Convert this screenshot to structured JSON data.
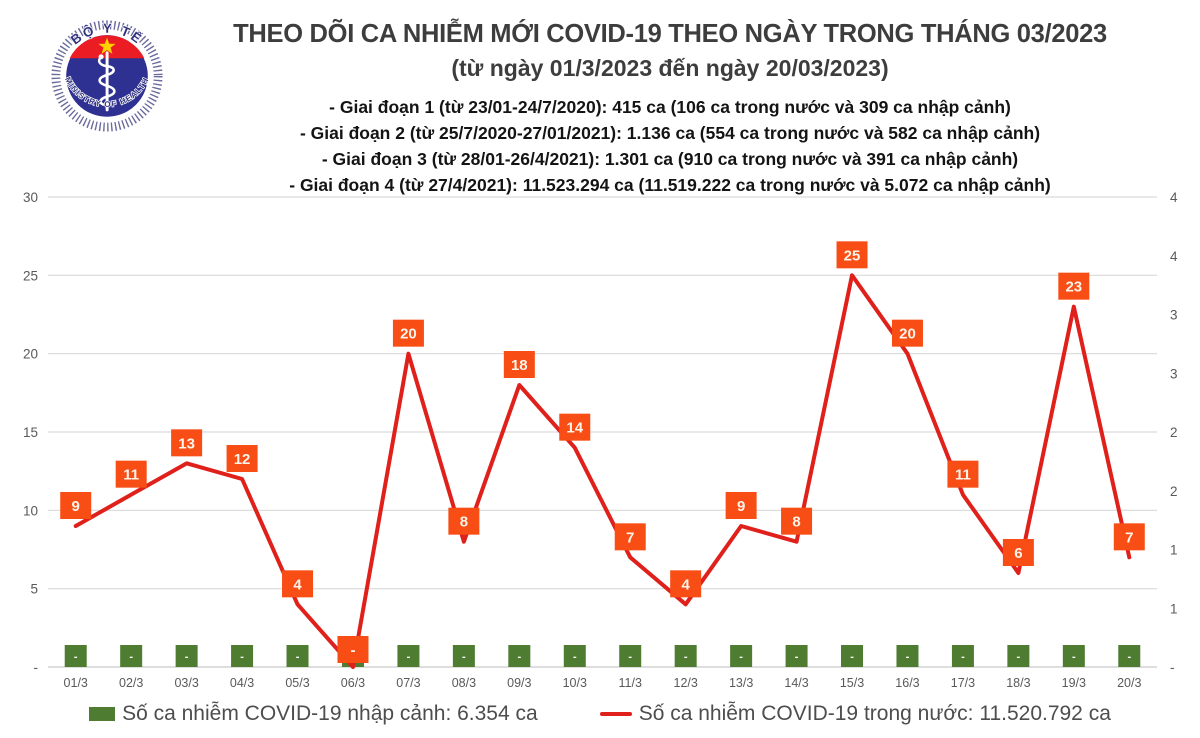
{
  "logo": {
    "top_text": "BỘ Y TẾ",
    "bottom_text": "MINISTRY OF HEALTH"
  },
  "header": {
    "title": "THEO DÕI CA NHIỄM MỚI COVID-19 THEO NGÀY TRONG THÁNG 03/2023",
    "subtitle": "(từ ngày 01/3/2023 đến ngày 20/03/2023)",
    "notes": [
      "- Giai đoạn 1 (từ 23/01-24/7/2020): 415 ca (106 ca trong nước và 309 ca nhập cảnh)",
      "- Giai đoạn 2 (từ 25/7/2020-27/01/2021): 1.136 ca (554 ca trong nước và 582 ca nhập cảnh)",
      "- Giai đoạn 3 (từ 28/01-26/4/2021): 1.301 ca (910 ca trong nước và 391 ca nhập cảnh)",
      "- Giai đoạn 4 (từ 27/4/2021): 11.523.294 ca (11.519.222 ca trong nước và 5.072 ca nhập cảnh)"
    ]
  },
  "chart_data": {
    "type": "line",
    "title": "THEO DÕI CA NHIỄM MỚI COVID-19 THEO NGÀY TRONG THÁNG 03/2023",
    "subtitle": "(từ ngày 01/3/2023 đến ngày 20/03/2023)",
    "categories": [
      "01/3",
      "02/3",
      "03/3",
      "04/3",
      "05/3",
      "06/3",
      "07/3",
      "08/3",
      "09/3",
      "10/3",
      "11/3",
      "12/3",
      "13/3",
      "14/3",
      "15/3",
      "16/3",
      "17/3",
      "18/3",
      "19/3",
      "20/3"
    ],
    "series": [
      {
        "name": "Số ca nhiễm COVID-19 trong nước",
        "chart": "line",
        "color": "#e0201a",
        "label_bg": "#f84d14",
        "values": [
          9,
          11,
          13,
          12,
          4,
          0,
          20,
          8,
          18,
          14,
          7,
          4,
          9,
          8,
          25,
          20,
          11,
          6,
          23,
          7
        ],
        "point_labels": [
          "9",
          "11",
          "13",
          "12",
          "4",
          "-",
          "20",
          "8",
          "18",
          "14",
          "7",
          "4",
          "9",
          "8",
          "25",
          "20",
          "11",
          "6",
          "23",
          "7"
        ]
      },
      {
        "name": "Số ca nhiễm COVID-19 nhập cảnh",
        "chart": "bar",
        "axis": "right",
        "color": "#4e7c31",
        "values": [
          0,
          0,
          0,
          0,
          0,
          0,
          0,
          0,
          0,
          0,
          0,
          0,
          0,
          0,
          0,
          0,
          0,
          0,
          0,
          0
        ],
        "point_labels": [
          "-",
          "-",
          "-",
          "-",
          "-",
          "-",
          "-",
          "-",
          "-",
          "-",
          "-",
          "-",
          "-",
          "-",
          "-",
          "-",
          "-",
          "-",
          "-",
          "-"
        ]
      }
    ],
    "left_axis": {
      "min": 0,
      "max": 30,
      "tick_labels": [
        "30",
        "25",
        "20",
        "15",
        "10",
        "5",
        "-"
      ]
    },
    "right_axis": {
      "min": 0,
      "max": 4,
      "tick_labels": [
        "4",
        "4",
        "3",
        "3",
        "2",
        "2",
        "1",
        "1",
        "-"
      ]
    },
    "grid": true,
    "legend_position": "bottom"
  },
  "legend": {
    "items": [
      {
        "label": "Số ca nhiễm COVID-19 nhập cảnh: 6.354 ca",
        "swatch": "bar",
        "color": "#4e7c31"
      },
      {
        "label": "Số ca nhiễm COVID-19 trong nước: 11.520.792 ca",
        "swatch": "line",
        "color": "#e0201a"
      }
    ]
  },
  "colors": {
    "line": "#e0201a",
    "data_label_bg": "#f84d14",
    "data_label_text": "#fdf4ea",
    "bar": "#4e7c31",
    "grid": "#d9d9d9",
    "axis_text": "#595959"
  }
}
